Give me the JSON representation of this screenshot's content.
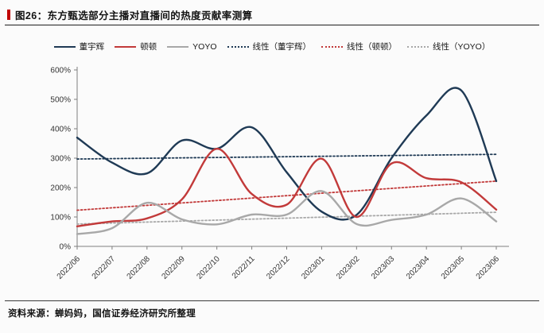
{
  "figure": {
    "title": "图26：东方甄选部分主播对直播间的热度贡献率测算",
    "source": "资料来源：蝉妈妈，国信证券经济研究所整理"
  },
  "colors": {
    "dongyuhui": "#1f3a55",
    "dundun": "#c23a3a",
    "yoyo": "#a8a8a8",
    "accent": "#c00000",
    "axis": "#7f7f7f",
    "tick_text": "#333333"
  },
  "chart_data": {
    "type": "line",
    "x": [
      "2022/06",
      "2022/07",
      "2022/08",
      "2022/09",
      "2022/10",
      "2022/11",
      "2022/12",
      "2023/01",
      "2023/02",
      "2023/03",
      "2023/04",
      "2023/05",
      "2023/06"
    ],
    "ylim": [
      0,
      600
    ],
    "ytick_step": 100,
    "ytick_suffix": "%",
    "grid": false,
    "legend_position": "top",
    "series": [
      {
        "key": "dongyuhui",
        "name": "董宇辉",
        "color_key": "dongyuhui",
        "style": "solid",
        "values": [
          370,
          285,
          248,
          360,
          332,
          405,
          252,
          118,
          107,
          300,
          445,
          530,
          222
        ]
      },
      {
        "key": "dundun",
        "name": "顿顿",
        "color_key": "dundun",
        "style": "solid",
        "values": [
          68,
          85,
          95,
          160,
          332,
          178,
          142,
          298,
          100,
          282,
          232,
          218,
          125
        ]
      },
      {
        "key": "yoyo",
        "name": "YOYO",
        "color_key": "yoyo",
        "style": "solid",
        "values": [
          42,
          62,
          148,
          92,
          75,
          108,
          108,
          188,
          76,
          90,
          108,
          163,
          85
        ]
      },
      {
        "key": "trend-dongyuhui",
        "name": "线性（董宇辉）",
        "color_key": "dongyuhui",
        "style": "dotted",
        "trend": [
          297,
          313
        ]
      },
      {
        "key": "trend-dundun",
        "name": "线性（顿顿）",
        "color_key": "dundun",
        "style": "dotted",
        "trend": [
          123,
          222
        ]
      },
      {
        "key": "trend-yoyo",
        "name": "线性（YOYO）",
        "color_key": "yoyo",
        "style": "dotted",
        "trend": [
          76,
          116
        ]
      }
    ]
  }
}
